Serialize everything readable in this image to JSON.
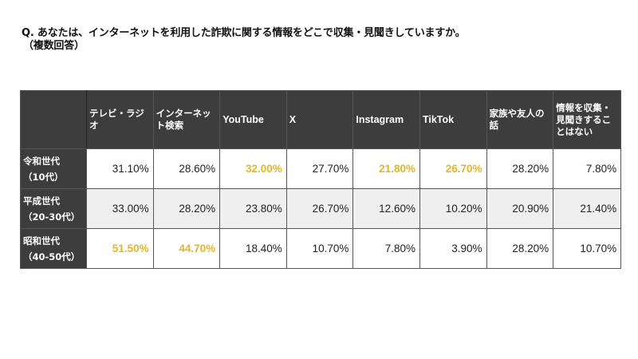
{
  "question": {
    "line1": "Q. あなたは、インターネットを利用した詐欺に関する情報をどこで収集・見聞きしていますか。",
    "line2": "（複数回答）"
  },
  "table": {
    "corner": "",
    "columns": [
      "テレビ・ラジオ",
      "インターネット検索",
      "YouTube",
      "X",
      "Instagram",
      "TikTok",
      "家族や友人の話",
      "情報を収集・見聞きすることはない"
    ],
    "rows": [
      {
        "label_line1": "令和世代",
        "label_line2": "（10代）",
        "values": [
          "31.10%",
          "28.60%",
          "32.00%",
          "27.70%",
          "21.80%",
          "26.70%",
          "28.20%",
          "7.80%"
        ],
        "highlighted": [
          false,
          false,
          true,
          false,
          true,
          true,
          false,
          false
        ]
      },
      {
        "label_line1": "平成世代",
        "label_line2": "（20-30代）",
        "values": [
          "33.00%",
          "28.20%",
          "23.80%",
          "26.70%",
          "12.60%",
          "10.20%",
          "20.90%",
          "21.40%"
        ],
        "highlighted": [
          false,
          false,
          false,
          false,
          false,
          false,
          false,
          false
        ]
      },
      {
        "label_line1": "昭和世代",
        "label_line2": "（40-50代）",
        "values": [
          "51.50%",
          "44.70%",
          "18.40%",
          "10.70%",
          "7.80%",
          "3.90%",
          "28.20%",
          "10.70%"
        ],
        "highlighted": [
          true,
          true,
          false,
          false,
          false,
          false,
          false,
          false
        ]
      }
    ]
  },
  "colors": {
    "header_bg": "#3d3d3d",
    "highlight": "#e4b52a",
    "alt_row_bg": "#efefef"
  },
  "chart_data": {
    "type": "table",
    "title": "Q. あなたは、インターネットを利用した詐欺に関する情報をどこで収集・見聞きしていますか。（複数回答）",
    "categories": [
      "テレビ・ラジオ",
      "インターネット検索",
      "YouTube",
      "X",
      "Instagram",
      "TikTok",
      "家族や友人の話",
      "情報を収集・見聞きすることはない"
    ],
    "series": [
      {
        "name": "令和世代（10代）",
        "values": [
          31.1,
          28.6,
          32.0,
          27.7,
          21.8,
          26.7,
          28.2,
          7.8
        ]
      },
      {
        "name": "平成世代（20-30代）",
        "values": [
          33.0,
          28.2,
          23.8,
          26.7,
          12.6,
          10.2,
          20.9,
          21.4
        ]
      },
      {
        "name": "昭和世代（40-50代）",
        "values": [
          51.5,
          44.7,
          18.4,
          10.7,
          7.8,
          3.9,
          28.2,
          10.7
        ]
      }
    ],
    "unit": "%"
  }
}
